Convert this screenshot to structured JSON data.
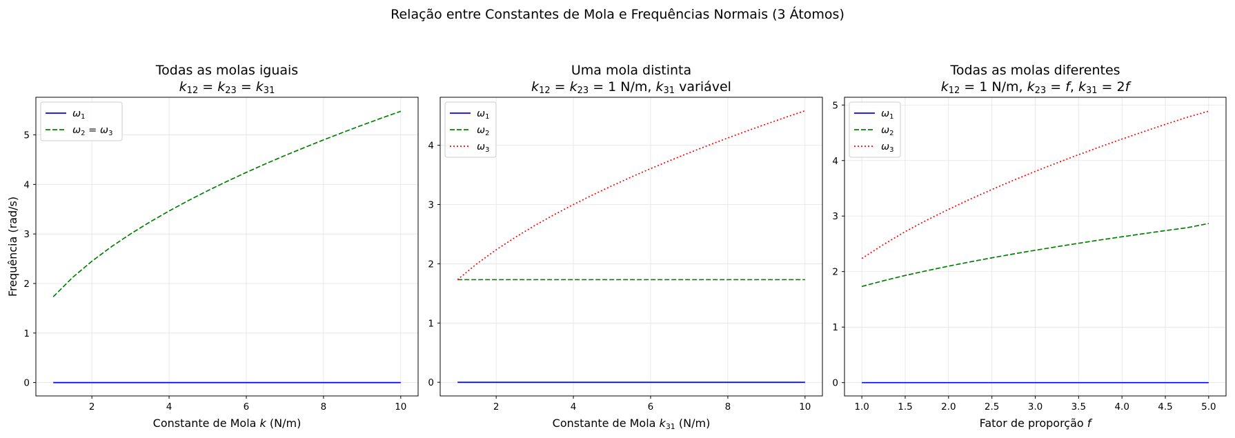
{
  "figure": {
    "title": "Relação entre Constantes de Mola e Frequências Normais (3 Átomos)"
  },
  "chart_data": [
    {
      "type": "line",
      "title_line1": "Todas as molas iguais",
      "title_line2": [
        {
          "t": "k",
          "i": true
        },
        {
          "t": "12",
          "s": true
        },
        {
          "t": " = "
        },
        {
          "t": "k",
          "i": true
        },
        {
          "t": "23",
          "s": true
        },
        {
          "t": " = "
        },
        {
          "t": "k",
          "i": true
        },
        {
          "t": "31",
          "s": true
        }
      ],
      "xlabel": [
        {
          "t": "Constante de Mola "
        },
        {
          "t": "k",
          "i": true
        },
        {
          "t": " (N/m)"
        }
      ],
      "ylabel": "Frequência (rad/s)",
      "xlim": [
        0.55,
        10.45
      ],
      "ylim": [
        -0.27,
        5.76
      ],
      "xticks": [
        2,
        4,
        6,
        8,
        10
      ],
      "xtick_labels": [
        "2",
        "4",
        "6",
        "8",
        "10"
      ],
      "yticks": [
        0,
        1,
        2,
        3,
        4,
        5
      ],
      "ytick_labels": [
        "0",
        "1",
        "2",
        "3",
        "4",
        "5"
      ],
      "grid": true,
      "legend_position": "upper-left",
      "x": [
        1,
        1.5,
        2,
        2.5,
        3,
        3.5,
        4,
        4.5,
        5,
        5.5,
        6,
        6.5,
        7,
        7.5,
        8,
        8.5,
        9,
        9.5,
        10
      ],
      "series": [
        {
          "label": [
            {
              "t": "ω",
              "i": true
            },
            {
              "t": "1",
              "s": true
            }
          ],
          "color": "#0000ff",
          "dash": "solid",
          "values": [
            0,
            0,
            0,
            0,
            0,
            0,
            0,
            0,
            0,
            0,
            0,
            0,
            0,
            0,
            0,
            0,
            0,
            0,
            0
          ]
        },
        {
          "label": [
            {
              "t": "ω",
              "i": true
            },
            {
              "t": "2",
              "s": true
            },
            {
              "t": " = "
            },
            {
              "t": "ω",
              "i": true
            },
            {
              "t": "3",
              "s": true
            }
          ],
          "color": "#008000",
          "dash": "dashed",
          "values": [
            1.732,
            2.121,
            2.449,
            2.739,
            3.0,
            3.24,
            3.464,
            3.674,
            3.873,
            4.062,
            4.243,
            4.416,
            4.583,
            4.743,
            4.899,
            5.05,
            5.196,
            5.339,
            5.477
          ]
        }
      ]
    },
    {
      "type": "line",
      "title_line1": "Uma mola distinta",
      "title_line2": [
        {
          "t": "k",
          "i": true
        },
        {
          "t": "12",
          "s": true
        },
        {
          "t": " = "
        },
        {
          "t": "k",
          "i": true
        },
        {
          "t": "23",
          "s": true
        },
        {
          "t": " = 1 N/m, "
        },
        {
          "t": "k",
          "i": true
        },
        {
          "t": "31",
          "s": true
        },
        {
          "t": " variável"
        }
      ],
      "xlabel": [
        {
          "t": "Constante de Mola "
        },
        {
          "t": "k",
          "i": true
        },
        {
          "t": "31",
          "s": true
        },
        {
          "t": " (N/m)"
        }
      ],
      "ylabel": "",
      "xlim": [
        0.55,
        10.45
      ],
      "ylim": [
        -0.23,
        4.81
      ],
      "xticks": [
        2,
        4,
        6,
        8,
        10
      ],
      "xtick_labels": [
        "2",
        "4",
        "6",
        "8",
        "10"
      ],
      "yticks": [
        0,
        1,
        2,
        3,
        4
      ],
      "ytick_labels": [
        "0",
        "1",
        "2",
        "3",
        "4"
      ],
      "grid": true,
      "legend_position": "upper-left",
      "x": [
        1,
        1.5,
        2,
        2.5,
        3,
        3.5,
        4,
        4.5,
        5,
        5.5,
        6,
        6.5,
        7,
        7.5,
        8,
        8.5,
        9,
        9.5,
        10
      ],
      "series": [
        {
          "label": [
            {
              "t": "ω",
              "i": true
            },
            {
              "t": "1",
              "s": true
            }
          ],
          "color": "#0000ff",
          "dash": "solid",
          "values": [
            0,
            0,
            0,
            0,
            0,
            0,
            0,
            0,
            0,
            0,
            0,
            0,
            0,
            0,
            0,
            0,
            0,
            0,
            0
          ]
        },
        {
          "label": [
            {
              "t": "ω",
              "i": true
            },
            {
              "t": "2",
              "s": true
            }
          ],
          "color": "#008000",
          "dash": "dashed",
          "values": [
            1.732,
            1.732,
            1.732,
            1.732,
            1.732,
            1.732,
            1.732,
            1.732,
            1.732,
            1.732,
            1.732,
            1.732,
            1.732,
            1.732,
            1.732,
            1.732,
            1.732,
            1.732,
            1.732
          ]
        },
        {
          "label": [
            {
              "t": "ω",
              "i": true
            },
            {
              "t": "3",
              "s": true
            }
          ],
          "color": "#ff0000",
          "dash": "dotted",
          "values": [
            1.732,
            2.0,
            2.236,
            2.449,
            2.646,
            2.828,
            3.0,
            3.162,
            3.317,
            3.464,
            3.606,
            3.742,
            3.873,
            4.0,
            4.123,
            4.243,
            4.359,
            4.472,
            4.583
          ]
        }
      ]
    },
    {
      "type": "line",
      "title_line1": "Todas as molas diferentes",
      "title_line2": [
        {
          "t": "k",
          "i": true
        },
        {
          "t": "12",
          "s": true
        },
        {
          "t": " = 1 N/m, "
        },
        {
          "t": "k",
          "i": true
        },
        {
          "t": "23",
          "s": true
        },
        {
          "t": " = "
        },
        {
          "t": "f",
          "i": true
        },
        {
          "t": ", "
        },
        {
          "t": "k",
          "i": true
        },
        {
          "t": "31",
          "s": true
        },
        {
          "t": " = 2"
        },
        {
          "t": "f",
          "i": true
        }
      ],
      "xlabel": [
        {
          "t": "Fator de proporção "
        },
        {
          "t": "f",
          "i": true
        }
      ],
      "ylabel": "",
      "xlim": [
        0.8,
        5.2
      ],
      "ylim": [
        -0.24,
        5.14
      ],
      "xticks": [
        1.0,
        1.5,
        2.0,
        2.5,
        3.0,
        3.5,
        4.0,
        4.5,
        5.0
      ],
      "xtick_labels": [
        "1.0",
        "1.5",
        "2.0",
        "2.5",
        "3.0",
        "3.5",
        "4.0",
        "4.5",
        "5.0"
      ],
      "yticks": [
        0,
        1,
        2,
        3,
        4,
        5
      ],
      "ytick_labels": [
        "0",
        "1",
        "2",
        "3",
        "4",
        "5"
      ],
      "grid": true,
      "legend_position": "upper-left",
      "x": [
        1.0,
        1.25,
        1.5,
        1.75,
        2.0,
        2.25,
        2.5,
        2.75,
        3.0,
        3.25,
        3.5,
        3.75,
        4.0,
        4.25,
        4.5,
        4.75,
        5.0
      ],
      "series": [
        {
          "label": [
            {
              "t": "ω",
              "i": true
            },
            {
              "t": "1",
              "s": true
            }
          ],
          "color": "#0000ff",
          "dash": "solid",
          "values": [
            0,
            0,
            0,
            0,
            0,
            0,
            0,
            0,
            0,
            0,
            0,
            0,
            0,
            0,
            0,
            0,
            0
          ]
        },
        {
          "label": [
            {
              "t": "ω",
              "i": true
            },
            {
              "t": "2",
              "s": true
            }
          ],
          "color": "#008000",
          "dash": "dashed",
          "values": [
            1.732,
            1.835,
            1.93,
            2.016,
            2.098,
            2.175,
            2.248,
            2.318,
            2.384,
            2.448,
            2.51,
            2.57,
            2.627,
            2.683,
            2.738,
            2.79,
            2.866
          ]
        },
        {
          "label": [
            {
              "t": "ω",
              "i": true
            },
            {
              "t": "3",
              "s": true
            }
          ],
          "color": "#ff0000",
          "dash": "dotted",
          "values": [
            2.236,
            2.487,
            2.72,
            2.928,
            3.121,
            3.305,
            3.479,
            3.646,
            3.805,
            3.958,
            4.106,
            4.249,
            4.387,
            4.521,
            4.652,
            4.779,
            4.89
          ]
        }
      ]
    }
  ]
}
